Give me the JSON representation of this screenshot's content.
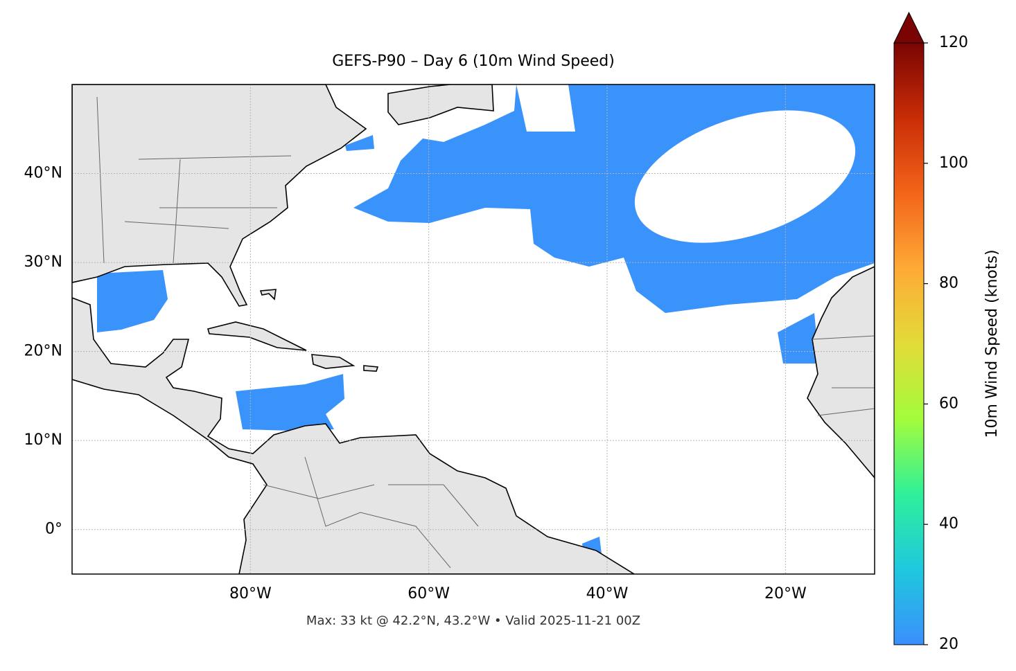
{
  "chart_data": {
    "type": "map",
    "title": "GEFS-P90 – Day 6 (10m Wind Speed)",
    "footer": "Max: 33 kt @ 42.2°N, 43.2°W • Valid 2025-11-21 00Z",
    "xlim": [
      -100,
      -10
    ],
    "ylim": [
      -5,
      50
    ],
    "xticks": [
      {
        "value": -80,
        "label": "80°W"
      },
      {
        "value": -60,
        "label": "60°W"
      },
      {
        "value": -40,
        "label": "40°W"
      },
      {
        "value": -20,
        "label": "20°W"
      }
    ],
    "yticks": [
      {
        "value": 0,
        "label": "0°"
      },
      {
        "value": 10,
        "label": "10°N"
      },
      {
        "value": 20,
        "label": "20°N"
      },
      {
        "value": 30,
        "label": "30°N"
      },
      {
        "value": 40,
        "label": "40°N"
      }
    ],
    "grid": true,
    "colorbar": {
      "label": "10m Wind Speed (knots)",
      "lim": [
        20,
        120
      ],
      "ticks": [
        20,
        40,
        60,
        80,
        100,
        120
      ],
      "colors": [
        "#3b8ffd",
        "#1fc8de",
        "#2ff09a",
        "#a4fc3c",
        "#e2dc38",
        "#feaa36",
        "#f3651a",
        "#c92d07",
        "#7a0403"
      ]
    }
  }
}
